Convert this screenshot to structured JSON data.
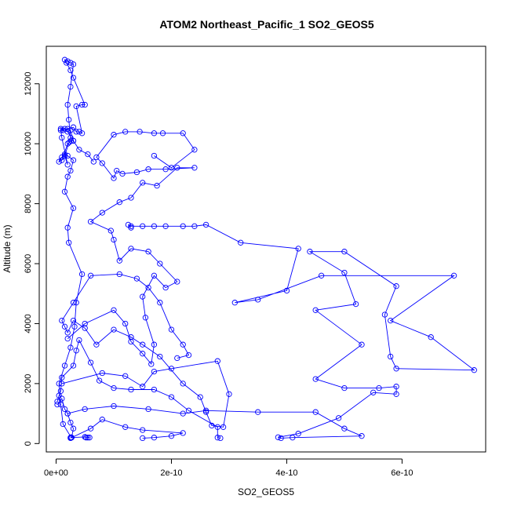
{
  "chart_data": {
    "type": "line",
    "title": "ATOM2 Northeast_Pacific_1 SO2_GEOS5",
    "xlabel": "SO2_GEOS5",
    "ylabel": "Altitude (m)",
    "x_tick_labels": [
      "0e+00",
      "2e-10",
      "4e-10",
      "6e-10"
    ],
    "y_tick_labels": [
      "0",
      "2000",
      "4000",
      "6000",
      "8000",
      "10000",
      "12000"
    ],
    "x_ticks": [
      0,
      2e-10,
      4e-10,
      6e-10
    ],
    "y_ticks": [
      0,
      2000,
      4000,
      6000,
      8000,
      10000,
      12000
    ],
    "xlim": [
      -1.7e-11,
      7.45e-10
    ],
    "ylim": [
      -280,
      13250
    ],
    "grid": false,
    "legend": "none",
    "color": "#0000ff",
    "marker": "open-circle",
    "series": [
      {
        "points": [
          [
            5.2e-11,
            200
          ],
          [
            5.5e-11,
            200
          ],
          [
            5.8e-11,
            200
          ],
          [
            5e-11,
            220
          ],
          [
            2.5e-11,
            200
          ],
          [
            2.6e-11,
            210
          ],
          [
            1.2e-11,
            650
          ],
          [
            8e-12,
            1300
          ],
          [
            5e-12,
            2000
          ],
          [
            1.5e-11,
            2600
          ],
          [
            2.5e-11,
            3200
          ],
          [
            3.2e-11,
            3900
          ],
          [
            3.5e-11,
            4700
          ],
          [
            4.5e-11,
            5650
          ],
          [
            2.2e-11,
            6700
          ],
          [
            2e-11,
            7200
          ],
          [
            3e-11,
            7850
          ],
          [
            1.5e-11,
            8400
          ],
          [
            2e-11,
            8900
          ],
          [
            2.5e-11,
            9100
          ],
          [
            3e-11,
            9450
          ],
          [
            2e-11,
            9600
          ],
          [
            1.5e-11,
            9650
          ],
          [
            1e-11,
            9550
          ],
          [
            5e-12,
            9400
          ],
          [
            1e-11,
            9450
          ],
          [
            2e-11,
            10000
          ],
          [
            2.3e-11,
            10050
          ],
          [
            2.6e-11,
            10100
          ],
          [
            3e-11,
            10100
          ],
          [
            2.5e-11,
            10450
          ],
          [
            2e-11,
            10500
          ],
          [
            1.5e-11,
            10500
          ],
          [
            8e-12,
            10450
          ],
          [
            3e-11,
            10550
          ],
          [
            3.5e-11,
            10400
          ],
          [
            4e-11,
            10400
          ],
          [
            4.5e-11,
            10350
          ],
          [
            3.5e-11,
            11250
          ],
          [
            4.5e-11,
            11300
          ],
          [
            5e-11,
            11300
          ],
          [
            3e-11,
            12200
          ],
          [
            2.5e-11,
            12450
          ],
          [
            1.8e-11,
            12700
          ],
          [
            1.5e-11,
            12800
          ],
          [
            2e-11,
            12750
          ],
          [
            2.5e-11,
            12700
          ],
          [
            3e-11,
            12650
          ],
          [
            2.5e-11,
            11900
          ],
          [
            2e-11,
            11300
          ],
          [
            2.2e-11,
            10800
          ],
          [
            2.5e-11,
            10200
          ],
          [
            1.5e-11,
            9600
          ],
          [
            2e-11,
            9300
          ],
          [
            1e-11,
            10200
          ],
          [
            8e-12,
            10500
          ],
          [
            1.2e-11,
            10450
          ],
          [
            2e-11,
            10400
          ],
          [
            3e-11,
            10100
          ],
          [
            4e-11,
            9800
          ],
          [
            5.5e-11,
            9650
          ],
          [
            6.5e-11,
            9400
          ]
        ]
      },
      {
        "points": [
          [
            2e-12,
            1400
          ],
          [
            5e-12,
            1600
          ],
          [
            8e-12,
            1750
          ],
          [
            1e-11,
            2200
          ],
          [
            3e-11,
            2600
          ],
          [
            3.5e-11,
            3100
          ],
          [
            4e-11,
            3450
          ],
          [
            6e-11,
            2700
          ],
          [
            7.5e-11,
            2100
          ],
          [
            1e-10,
            1850
          ],
          [
            1.3e-10,
            1800
          ],
          [
            1.7e-10,
            1800
          ],
          [
            2e-10,
            1550
          ],
          [
            2.3e-10,
            1100
          ],
          [
            2.8e-10,
            550
          ],
          [
            2.8e-10,
            200
          ],
          [
            2.85e-10,
            180
          ]
        ]
      },
      {
        "points": [
          [
            2e-12,
            1300
          ],
          [
            1e-11,
            1500
          ],
          [
            1.5e-11,
            1150
          ],
          [
            2e-11,
            1000
          ],
          [
            2.5e-11,
            700
          ],
          [
            3e-11,
            500
          ],
          [
            2.7e-11,
            200
          ],
          [
            2.5e-11,
            180
          ],
          [
            6e-11,
            500
          ],
          [
            8e-11,
            800
          ],
          [
            1.2e-10,
            550
          ],
          [
            1.5e-10,
            450
          ],
          [
            2.2e-10,
            350
          ],
          [
            2e-10,
            250
          ],
          [
            1.7e-10,
            200
          ],
          [
            1.5e-10,
            180
          ]
        ]
      },
      {
        "points": [
          [
            2e-11,
            1000
          ],
          [
            5e-11,
            1150
          ],
          [
            1e-10,
            1250
          ],
          [
            1.6e-10,
            1150
          ],
          [
            2.2e-10,
            1000
          ],
          [
            2.6e-10,
            1100
          ],
          [
            3.5e-10,
            1050
          ],
          [
            4.5e-10,
            1050
          ],
          [
            5e-10,
            500
          ],
          [
            5.3e-10,
            250
          ],
          [
            4.1e-10,
            200
          ],
          [
            3.9e-10,
            180
          ],
          [
            3.85e-10,
            210
          ],
          [
            4.2e-10,
            330
          ],
          [
            4.9e-10,
            850
          ],
          [
            5.5e-10,
            1700
          ],
          [
            5.9e-10,
            1650
          ],
          [
            5.9e-10,
            1900
          ],
          [
            5.6e-10,
            1850
          ],
          [
            5e-10,
            1850
          ],
          [
            4.5e-10,
            2150
          ],
          [
            5.3e-10,
            3300
          ],
          [
            4.5e-10,
            4450
          ],
          [
            5.2e-10,
            4650
          ],
          [
            5e-10,
            5700
          ],
          [
            4.4e-10,
            6400
          ],
          [
            5e-10,
            6400
          ],
          [
            5.9e-10,
            5250
          ],
          [
            5.7e-10,
            4300
          ],
          [
            5.8e-10,
            2900
          ],
          [
            5.9e-10,
            2500
          ],
          [
            7.25e-10,
            2450
          ],
          [
            6.5e-10,
            3550
          ],
          [
            5.8e-10,
            4100
          ],
          [
            6.9e-10,
            5600
          ],
          [
            4.6e-10,
            5600
          ],
          [
            3.5e-10,
            4800
          ],
          [
            3.1e-10,
            4700
          ],
          [
            4e-10,
            5100
          ],
          [
            4.2e-10,
            6500
          ],
          [
            3.2e-10,
            6700
          ],
          [
            2.6e-10,
            7300
          ],
          [
            2.4e-10,
            7250
          ],
          [
            2.2e-10,
            7250
          ],
          [
            1.9e-10,
            7250
          ],
          [
            1.7e-10,
            7250
          ],
          [
            1.5e-10,
            7250
          ],
          [
            1.3e-10,
            7250
          ],
          [
            1.25e-10,
            7300
          ],
          [
            1.3e-10,
            7200
          ]
        ]
      },
      {
        "points": [
          [
            1e-11,
            2000
          ],
          [
            8e-11,
            2350
          ],
          [
            1.2e-10,
            2250
          ],
          [
            1.5e-10,
            1900
          ],
          [
            1.7e-10,
            2400
          ],
          [
            2e-10,
            2500
          ],
          [
            2.8e-10,
            2750
          ],
          [
            3e-10,
            1650
          ],
          [
            2.9e-10,
            550
          ],
          [
            2.7e-10,
            600
          ],
          [
            2.6e-10,
            1050
          ],
          [
            2.5e-10,
            1550
          ],
          [
            2.2e-10,
            2000
          ],
          [
            1.8e-10,
            2900
          ],
          [
            1.5e-10,
            3300
          ],
          [
            1.3e-10,
            3550
          ],
          [
            1e-10,
            3800
          ],
          [
            7e-11,
            3300
          ],
          [
            5e-11,
            3850
          ],
          [
            3e-11,
            4100
          ],
          [
            2e-11,
            3700
          ],
          [
            1.5e-11,
            3900
          ],
          [
            1e-11,
            4100
          ],
          [
            3e-11,
            4700
          ],
          [
            6e-11,
            5600
          ],
          [
            1.1e-10,
            5650
          ],
          [
            1.4e-10,
            5500
          ],
          [
            1.6e-10,
            5200
          ],
          [
            1.8e-10,
            4700
          ],
          [
            2e-10,
            3800
          ],
          [
            2.2e-10,
            3300
          ],
          [
            2.3e-10,
            2950
          ],
          [
            2.1e-10,
            2850
          ]
        ]
      },
      {
        "points": [
          [
            2e-11,
            3500
          ],
          [
            5e-11,
            4000
          ],
          [
            1e-10,
            4450
          ],
          [
            1.2e-10,
            4000
          ],
          [
            1.3e-10,
            3400
          ],
          [
            1.5e-10,
            3000
          ],
          [
            1.65e-10,
            2650
          ],
          [
            1.7e-10,
            3300
          ],
          [
            1.55e-10,
            4200
          ],
          [
            1.5e-10,
            4900
          ],
          [
            1.7e-10,
            5600
          ],
          [
            1.9e-10,
            5200
          ],
          [
            2.1e-10,
            5400
          ],
          [
            1.8e-10,
            6000
          ],
          [
            1.6e-10,
            6400
          ],
          [
            1.3e-10,
            6500
          ],
          [
            1.1e-10,
            6100
          ],
          [
            1e-10,
            6800
          ],
          [
            9.5e-11,
            7100
          ],
          [
            6e-11,
            7400
          ],
          [
            8e-11,
            7700
          ],
          [
            1.1e-10,
            8050
          ],
          [
            1.3e-10,
            8200
          ],
          [
            1.5e-10,
            8700
          ],
          [
            1.75e-10,
            8600
          ],
          [
            2.1e-10,
            9200
          ],
          [
            2.4e-10,
            9200
          ],
          [
            1.9e-10,
            9150
          ],
          [
            1.6e-10,
            9150
          ],
          [
            1.4e-10,
            9050
          ],
          [
            1.15e-10,
            9000
          ],
          [
            1.05e-10,
            9100
          ],
          [
            1e-10,
            8850
          ],
          [
            8e-11,
            9350
          ],
          [
            7e-11,
            9550
          ],
          [
            1e-10,
            10300
          ],
          [
            1.2e-10,
            10400
          ],
          [
            1.45e-10,
            10400
          ],
          [
            1.7e-10,
            10350
          ],
          [
            1.85e-10,
            10350
          ],
          [
            2.2e-10,
            10350
          ],
          [
            2.4e-10,
            9800
          ],
          [
            2e-10,
            9200
          ],
          [
            1.7e-10,
            9600
          ]
        ]
      }
    ]
  }
}
